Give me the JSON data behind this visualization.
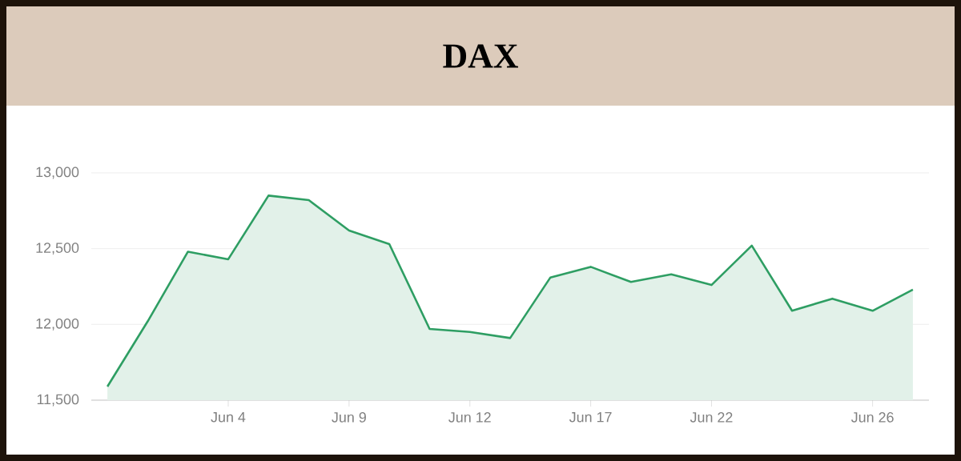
{
  "chart_data": {
    "type": "area",
    "title": "DAX",
    "categories": [
      null,
      null,
      null,
      "Jun 4",
      null,
      null,
      "Jun 9",
      null,
      null,
      "Jun 12",
      null,
      null,
      "Jun 17",
      null,
      null,
      "Jun 22",
      null,
      null,
      null,
      "Jun 26",
      null
    ],
    "values": [
      11590,
      12020,
      12480,
      12430,
      12850,
      12820,
      12620,
      12530,
      11970,
      11950,
      11910,
      12310,
      12380,
      12280,
      12330,
      12260,
      12520,
      12090,
      12170,
      12090,
      12230
    ],
    "color": "#2e9e63",
    "ylim": [
      11500,
      13000
    ],
    "yticks": [
      {
        "value": 11500,
        "label": "11,500"
      },
      {
        "value": 12000,
        "label": "12,000"
      },
      {
        "value": 12500,
        "label": "12,500"
      },
      {
        "value": 13000,
        "label": "13,000"
      }
    ],
    "grid": "y"
  }
}
